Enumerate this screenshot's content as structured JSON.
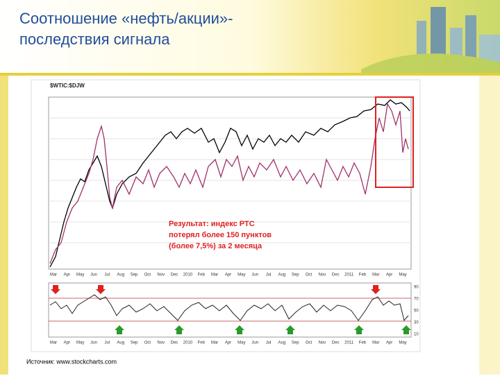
{
  "header": {
    "title_line1": "Соотношение «нефть/акции»-",
    "title_line2": "последствия сигнала"
  },
  "chart": {
    "annotation_lines": [
      "Результат: индекс РТС",
      "потерял более 150 пунктов",
      "(более 7,5%) за 2 месяца"
    ],
    "x_labels": [
      "Mar",
      "Apr",
      "May",
      "Jun",
      "Jul",
      "Aug",
      "Sep",
      "Oct",
      "Nov",
      "Dec",
      "2010",
      "Feb",
      "Mar",
      "Apr",
      "May",
      "Jun",
      "Jul",
      "Aug",
      "Sep",
      "Oct",
      "Nov",
      "Dec",
      "2011",
      "Feb",
      "Mar",
      "Apr",
      "May"
    ],
    "lower_labels": [
      "90",
      "70",
      "50",
      "30",
      "10"
    ]
  },
  "footer": {
    "source": "Источник: www.stockcharts.com"
  }
}
